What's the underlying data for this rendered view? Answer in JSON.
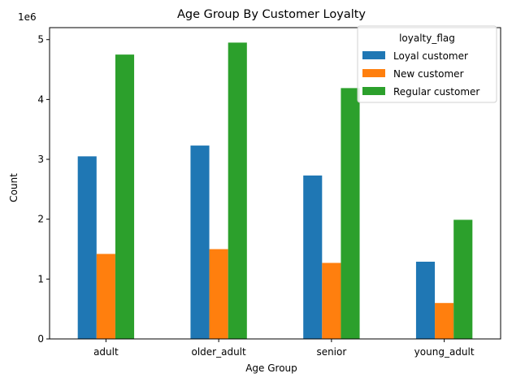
{
  "chart_data": {
    "type": "bar",
    "title": "Age Group By Customer Loyalty",
    "xlabel": "Age Group",
    "ylabel": "Count",
    "y_offset_label": "1e6",
    "ylim": [
      0,
      5.2
    ],
    "yticks": [
      "0",
      "1",
      "2",
      "3",
      "4",
      "5"
    ],
    "categories": [
      "adult",
      "older_adult",
      "senior",
      "young_adult"
    ],
    "legend": {
      "title": "loyalty_flag",
      "position": "top-right"
    },
    "grid": false,
    "series": [
      {
        "name": "Loyal customer",
        "color": "#1f77b4",
        "values": [
          3.05,
          3.23,
          2.73,
          1.29
        ]
      },
      {
        "name": "New customer",
        "color": "#ff7f0e",
        "values": [
          1.42,
          1.5,
          1.27,
          0.6
        ]
      },
      {
        "name": "Regular customer",
        "color": "#2ca02c",
        "values": [
          4.75,
          4.95,
          4.19,
          1.99
        ]
      }
    ]
  }
}
